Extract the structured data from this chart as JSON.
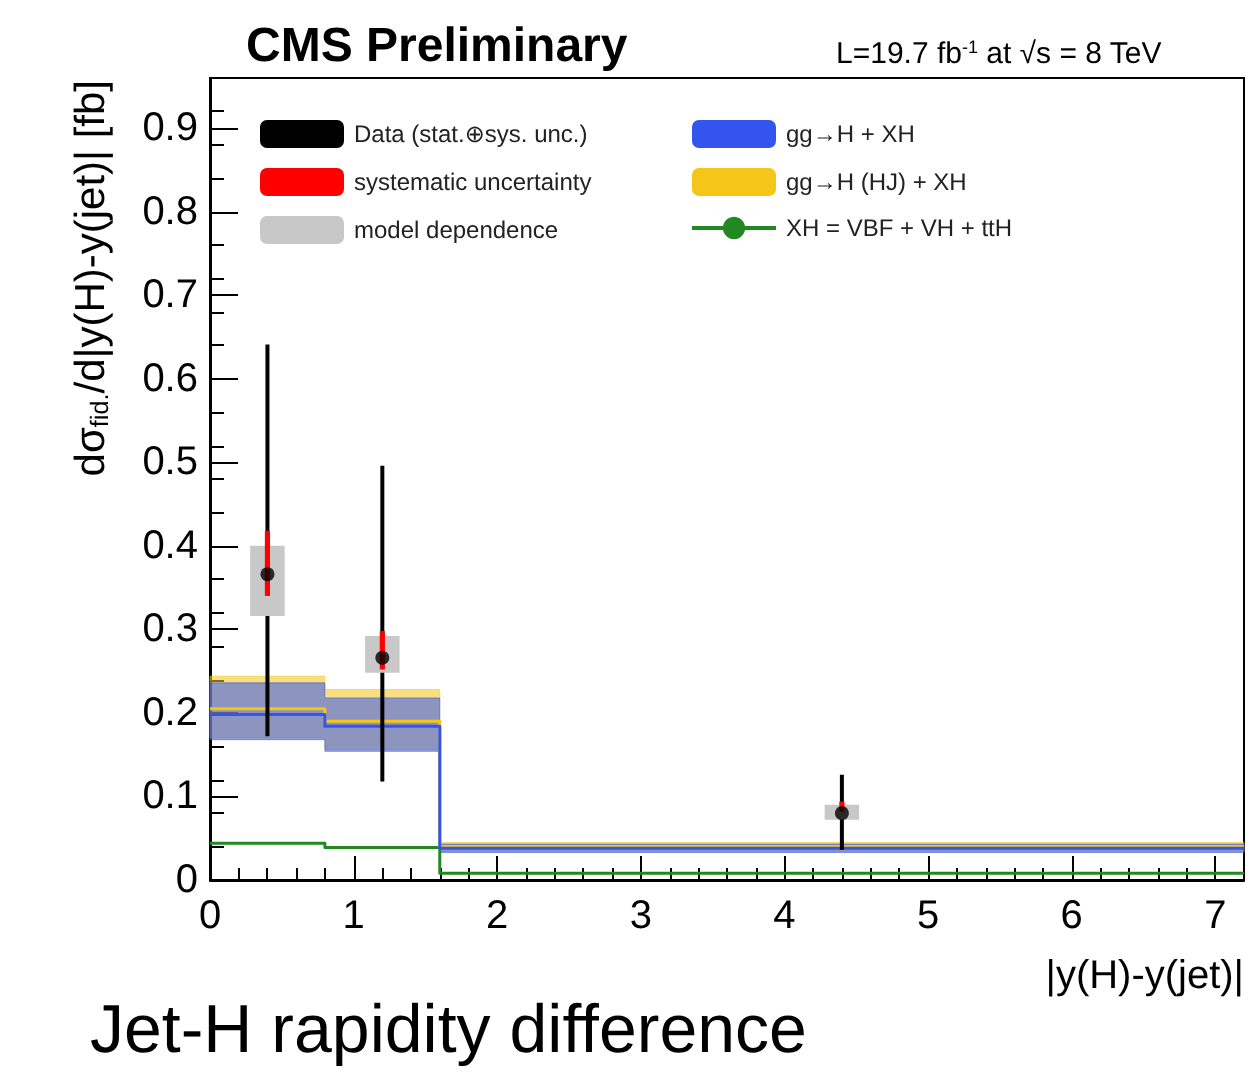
{
  "chart_data": {
    "type": "scatter",
    "title": "CMS Preliminary",
    "subtitle": "L=19.7 fb$^{-1}$ at √s = 8 TeV",
    "xlabel": "|y(H)-y(jet)|",
    "ylabel": "dσ$_{fid.}$/d|y(H)-y(jet)| [fb]",
    "annotations": [
      "Jet-H rapidity difference"
    ],
    "xlim": [
      0,
      7.2
    ],
    "xticks": [
      0,
      1,
      2,
      3,
      4,
      5,
      6,
      7
    ],
    "ylim": [
      0,
      0.96
    ],
    "yticks": [
      0,
      0.1,
      0.2,
      0.3,
      0.4,
      0.5,
      0.6,
      0.7,
      0.8,
      0.9
    ],
    "legend": "top",
    "series": [
      {
        "name": "gg→H + XH",
        "type": "step",
        "color": "#3355ee",
        "x": [
          0,
          0.8,
          1.6,
          7.2
        ],
        "values": [
          0.198,
          0.184,
          0.038,
          0.038
        ],
        "lower": [
          0.168,
          0.154,
          0.033,
          0.033
        ],
        "upper": [
          0.236,
          0.218,
          0.043,
          0.043
        ]
      },
      {
        "name": "gg→H (HJ) + XH",
        "type": "step",
        "color": "#f5c518",
        "x": [
          0,
          0.8,
          1.6,
          7.2
        ],
        "values": [
          0.205,
          0.19,
          0.04,
          0.04
        ],
        "lower": [
          0.17,
          0.156,
          0.034,
          0.034
        ],
        "upper": [
          0.244,
          0.228,
          0.045,
          0.045
        ]
      },
      {
        "name": "XH = VBF + VH + ttH",
        "type": "step",
        "color": "#228822",
        "x": [
          0,
          0.8,
          1.6,
          7.2
        ],
        "values": [
          0.044,
          0.039,
          0.008,
          0.008
        ]
      },
      {
        "name": "model dependence",
        "type": "bar",
        "color": "#c8c8c8",
        "x": [
          0.4,
          1.2,
          4.4
        ],
        "base": [
          0.316,
          0.248,
          0.072
        ],
        "values": [
          0.084,
          0.044,
          0.018
        ]
      },
      {
        "name": "systematic uncertainty",
        "type": "bar",
        "color": "#ff0000",
        "x": [
          0.4,
          1.2,
          4.4
        ],
        "base": [
          0.34,
          0.252,
          0.082
        ],
        "values": [
          0.078,
          0.046,
          0.012
        ]
      },
      {
        "name": "Data (stat.⊕sys. unc.)",
        "color": "#000000",
        "marker": "circle",
        "x": [
          0.4,
          1.2,
          4.4
        ],
        "values": [
          0.366,
          0.266,
          0.08
        ],
        "errors": [
          [
            0.172,
            0.641
          ],
          [
            0.118,
            0.496
          ],
          [
            0.036,
            0.126
          ]
        ]
      }
    ]
  }
}
